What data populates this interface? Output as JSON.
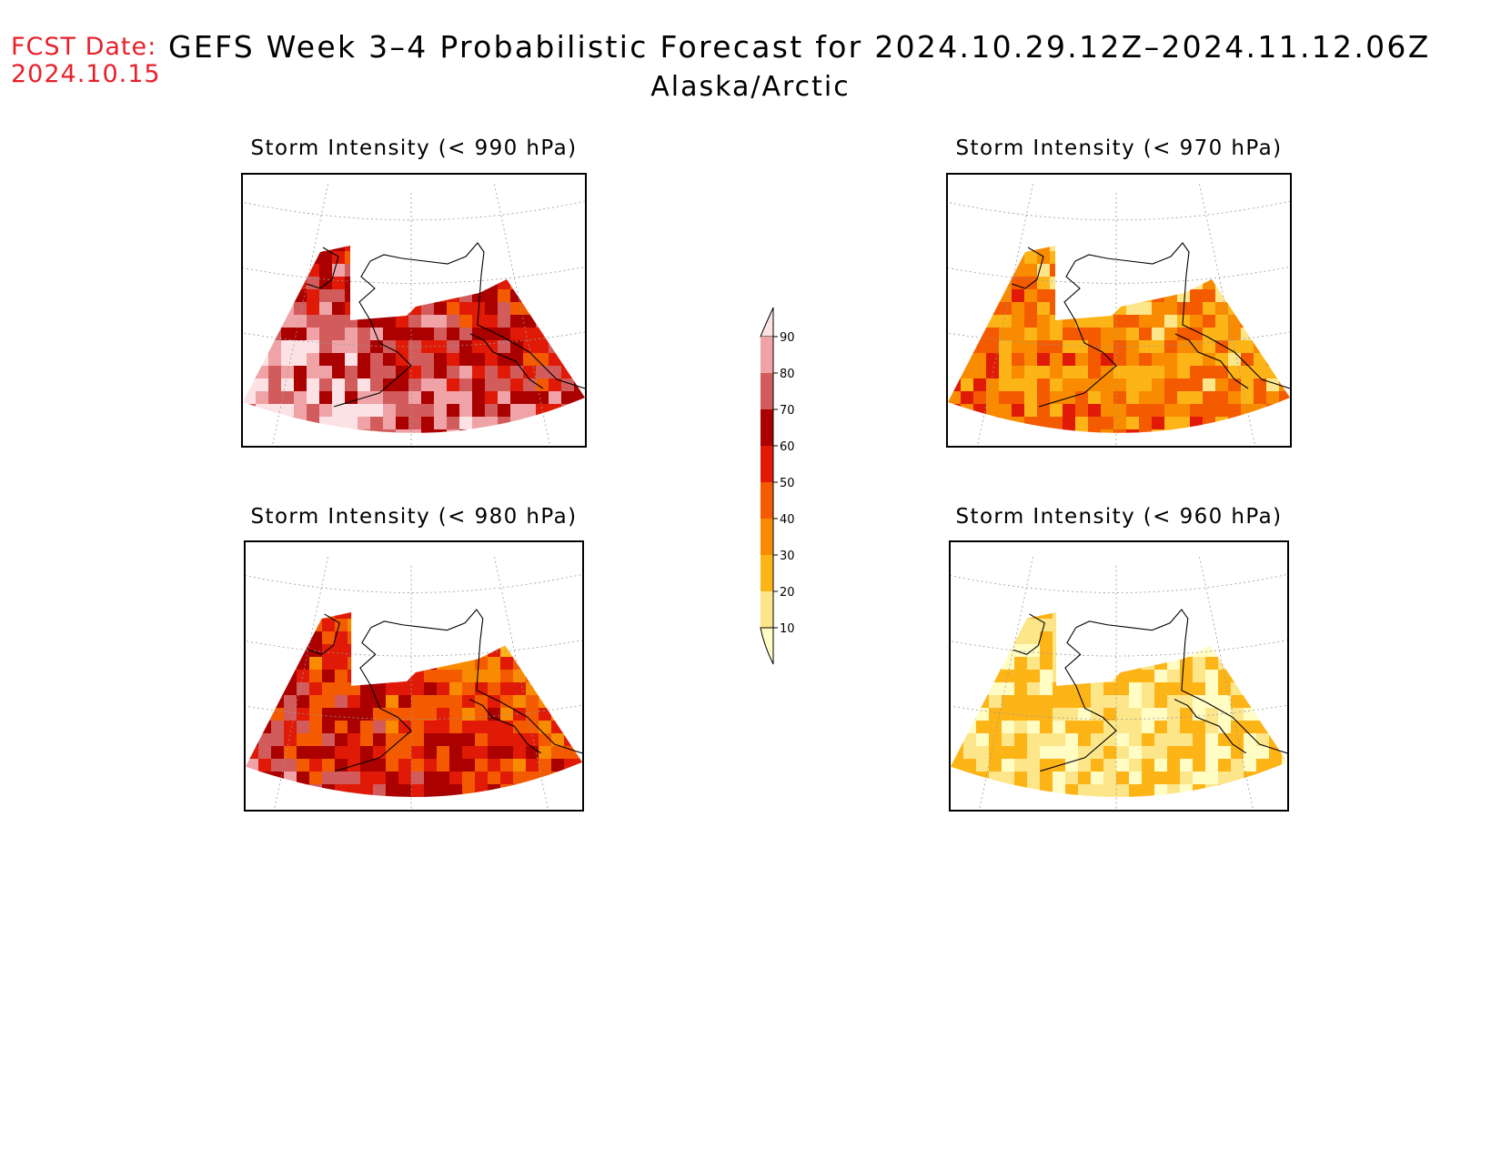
{
  "header": {
    "fcst_label": "FCST Date:",
    "fcst_date": "2024.10.15",
    "title": "GEFS Week 3–4 Probabilistic Forecast for 2024.10.29.12Z–2024.11.12.06Z",
    "region": "Alaska/Arctic"
  },
  "panels": [
    {
      "id": "p990",
      "title": "Storm Intensity (< 990 hPa)",
      "level": 990,
      "intensity": 1.0
    },
    {
      "id": "p970",
      "title": "Storm Intensity (< 970 hPa)",
      "level": 970,
      "intensity": 0.45
    },
    {
      "id": "p980",
      "title": "Storm Intensity (< 980 hPa)",
      "level": 980,
      "intensity": 0.72
    },
    {
      "id": "p960",
      "title": "Storm Intensity (< 960 hPa)",
      "level": 960,
      "intensity": 0.18
    }
  ],
  "colorbar": {
    "ticks": [
      "10",
      "20",
      "30",
      "40",
      "50",
      "60",
      "70",
      "80",
      "90"
    ],
    "colors": [
      "#fffcc4",
      "#fde68a",
      "#fdb417",
      "#f98b00",
      "#f45a00",
      "#e01a06",
      "#aa0000",
      "#d25c5c",
      "#f0a3a6",
      "#fce2e5"
    ]
  }
}
